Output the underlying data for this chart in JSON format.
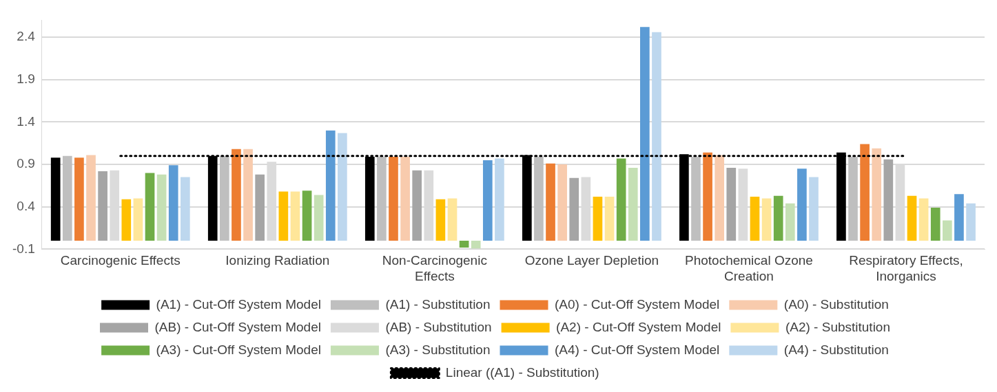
{
  "chart_data": {
    "type": "bar",
    "categories": [
      "Carcinogenic Effects",
      "Ionizing Radiation",
      "Non-Carcinogenic Effects",
      "Ozone Layer Depletion",
      "Photochemical Ozone Creation",
      "Respiratory Effects, Inorganics"
    ],
    "ylim": [
      -0.1,
      2.6
    ],
    "yticks": [
      -0.1,
      0.4,
      0.9,
      1.4,
      1.9,
      2.4
    ],
    "grid": "y",
    "legend": "bottom",
    "series": [
      {
        "name": "(A1) - Cut-Off System Model",
        "color": "#000000",
        "values": [
          0.98,
          1.0,
          0.99,
          1.01,
          1.02,
          1.04
        ]
      },
      {
        "name": "(A1) - Substitution",
        "color": "#bfbfbf",
        "values": [
          1.0,
          1.0,
          0.99,
          0.99,
          0.99,
          0.99
        ]
      },
      {
        "name": "(A0) - Cut-Off System Model",
        "color": "#ed7d31",
        "values": [
          0.98,
          1.08,
          0.99,
          0.91,
          1.04,
          1.14
        ]
      },
      {
        "name": "(A0) - Substitution",
        "color": "#f8cbad",
        "values": [
          1.01,
          1.08,
          0.99,
          0.9,
          1.01,
          1.09
        ]
      },
      {
        "name": "(AB) - Cut-Off System Model",
        "color": "#a5a5a5",
        "values": [
          0.82,
          0.78,
          0.83,
          0.74,
          0.86,
          0.96
        ]
      },
      {
        "name": "(AB) - Substitution",
        "color": "#dbdbdb",
        "values": [
          0.83,
          0.93,
          0.83,
          0.75,
          0.85,
          0.9
        ]
      },
      {
        "name": "(A2) - Cut-Off System Model",
        "color": "#ffc000",
        "values": [
          0.49,
          0.58,
          0.49,
          0.52,
          0.52,
          0.53
        ]
      },
      {
        "name": "(A2) - Substitution",
        "color": "#ffe699",
        "values": [
          0.5,
          0.58,
          0.5,
          0.52,
          0.5,
          0.5
        ]
      },
      {
        "name": "(A3) - Cut-Off System Model",
        "color": "#70ad47",
        "values": [
          0.8,
          0.59,
          -0.08,
          0.97,
          0.53,
          0.39
        ]
      },
      {
        "name": "(A3) - Substitution",
        "color": "#c5e0b4",
        "values": [
          0.78,
          0.54,
          -0.09,
          0.86,
          0.44,
          0.24
        ]
      },
      {
        "name": "(A4) - Cut-Off System Model",
        "color": "#5b9bd5",
        "values": [
          0.89,
          1.3,
          0.95,
          2.52,
          0.85,
          0.55
        ]
      },
      {
        "name": "(A4) - Substitution",
        "color": "#bdd7ee",
        "values": [
          0.75,
          1.27,
          0.97,
          2.46,
          0.75,
          0.44
        ]
      },
      {
        "name": "Linear ((A1) - Substitution)",
        "color": "#000000",
        "type": "line",
        "marker": "none",
        "line_style": "dotted",
        "values": [
          1.0,
          1.0,
          1.0,
          1.0,
          1.0,
          1.0
        ]
      }
    ]
  }
}
